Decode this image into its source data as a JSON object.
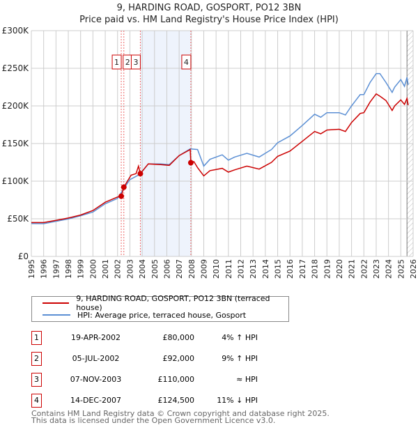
{
  "title": "9, HARDING ROAD, GOSPORT, PO12 3BN",
  "subtitle": "Price paid vs. HM Land Registry's House Price Index (HPI)",
  "colors": {
    "price": "#cc0000",
    "hpi": "#5b8fd4",
    "shade": "#eef3fc"
  },
  "chart_data": {
    "type": "line",
    "title": "9, HARDING ROAD, GOSPORT, PO12 3BN",
    "subtitle": "Price paid vs. HM Land Registry's House Price Index (HPI)",
    "xlim": [
      1995,
      2026
    ],
    "ylim": [
      0,
      300000
    ],
    "x_ticks": [
      "1995",
      "1996",
      "1997",
      "1998",
      "1999",
      "2000",
      "2001",
      "2002",
      "2003",
      "2004",
      "2005",
      "2006",
      "2007",
      "2008",
      "2009",
      "2010",
      "2011",
      "2012",
      "2013",
      "2014",
      "2015",
      "2016",
      "2017",
      "2018",
      "2019",
      "2020",
      "2021",
      "2022",
      "2023",
      "2024",
      "2025",
      "2026"
    ],
    "y_ticks": [
      {
        "v": 0,
        "label": "£0"
      },
      {
        "v": 50000,
        "label": "£50K"
      },
      {
        "v": 100000,
        "label": "£100K"
      },
      {
        "v": 150000,
        "label": "£150K"
      },
      {
        "v": 200000,
        "label": "£200K"
      },
      {
        "v": 250000,
        "label": "£250K"
      },
      {
        "v": 300000,
        "label": "£300K"
      }
    ],
    "grid": true,
    "shaded_range": [
      2003.85,
      2007.95
    ],
    "future_hatch_from": 2025.5,
    "series": [
      {
        "name": "9, HARDING ROAD, GOSPORT, PO12 3BN (terraced house)",
        "color": "#cc0000",
        "x": [
          1995,
          1996,
          1997,
          1998,
          1999,
          2000,
          2001,
          2002,
          2002.3,
          2002.51,
          2002.8,
          2003.1,
          2003.5,
          2003.7,
          2003.85,
          2004.5,
          2005.5,
          2006.2,
          2007,
          2007.9,
          2007.95,
          2008.2,
          2008.5,
          2009,
          2009.5,
          2010.5,
          2011,
          2011.5,
          2012.5,
          2013.5,
          2014.5,
          2015,
          2016,
          2017,
          2018,
          2018.5,
          2019,
          2020,
          2020.5,
          2021,
          2021.7,
          2022,
          2022.5,
          2023,
          2023.3,
          2023.8,
          2024.3,
          2024.5,
          2025,
          2025.3,
          2025.5,
          2025.6
        ],
        "y": [
          45000,
          45000,
          48000,
          51000,
          55000,
          61000,
          72000,
          79000,
          80000,
          92000,
          100000,
          108000,
          110000,
          120000,
          110000,
          123000,
          122000,
          121000,
          134000,
          142000,
          124500,
          126000,
          118000,
          107000,
          114000,
          117000,
          112000,
          115000,
          120000,
          116000,
          125000,
          133000,
          140000,
          153000,
          166000,
          163000,
          168000,
          169000,
          166000,
          178000,
          190000,
          191000,
          205000,
          216000,
          213000,
          207000,
          194000,
          200000,
          208000,
          202000,
          210000,
          201000
        ]
      },
      {
        "name": "HPI: Average price, terraced house, Gosport",
        "color": "#5b8fd4",
        "x": [
          1995,
          1996,
          1997,
          1998,
          1999,
          2000,
          2001,
          2002,
          2002.5,
          2003,
          2003.8,
          2004.5,
          2005.5,
          2006.2,
          2007,
          2007.9,
          2008.5,
          2009,
          2009.5,
          2010.5,
          2011,
          2011.5,
          2012.5,
          2013.5,
          2014.5,
          2015,
          2016,
          2017,
          2018,
          2018.5,
          2019,
          2020,
          2020.5,
          2021,
          2021.7,
          2022,
          2022.5,
          2023,
          2023.3,
          2023.8,
          2024.3,
          2024.5,
          2025,
          2025.3,
          2025.5,
          2025.6
        ],
        "y": [
          43600,
          43500,
          46600,
          49700,
          54000,
          59000,
          70000,
          77000,
          90000,
          102000,
          109000,
          123000,
          123000,
          122000,
          134000,
          143000,
          142000,
          120000,
          129000,
          135000,
          128000,
          132000,
          137000,
          132000,
          142000,
          151000,
          160000,
          174000,
          189000,
          185000,
          191000,
          191000,
          188000,
          200000,
          215000,
          215000,
          231000,
          243000,
          243000,
          231000,
          218000,
          225000,
          235000,
          226000,
          238000,
          228000
        ]
      }
    ],
    "sales": [
      {
        "n": "1",
        "x": 2002.3,
        "price": 80000,
        "date": "19-APR-2002",
        "price_label": "£80,000",
        "hpi": "4% ↑ HPI"
      },
      {
        "n": "2",
        "x": 2002.51,
        "price": 92000,
        "date": "05-JUL-2002",
        "price_label": "£92,000",
        "hpi": "9% ↑ HPI"
      },
      {
        "n": "3",
        "x": 2003.85,
        "price": 110000,
        "date": "07-NOV-2003",
        "price_label": "£110,000",
        "hpi": "≈ HPI"
      },
      {
        "n": "4",
        "x": 2007.95,
        "price": 124500,
        "date": "14-DEC-2007",
        "price_label": "£124,500",
        "hpi": "11% ↓ HPI"
      }
    ]
  },
  "legend": {
    "price": "9, HARDING ROAD, GOSPORT, PO12 3BN (terraced house)",
    "hpi": "HPI: Average price, terraced house, Gosport"
  },
  "footer": {
    "line1": "Contains HM Land Registry data © Crown copyright and database right 2025.",
    "line2": "This data is licensed under the Open Government Licence v3.0."
  }
}
